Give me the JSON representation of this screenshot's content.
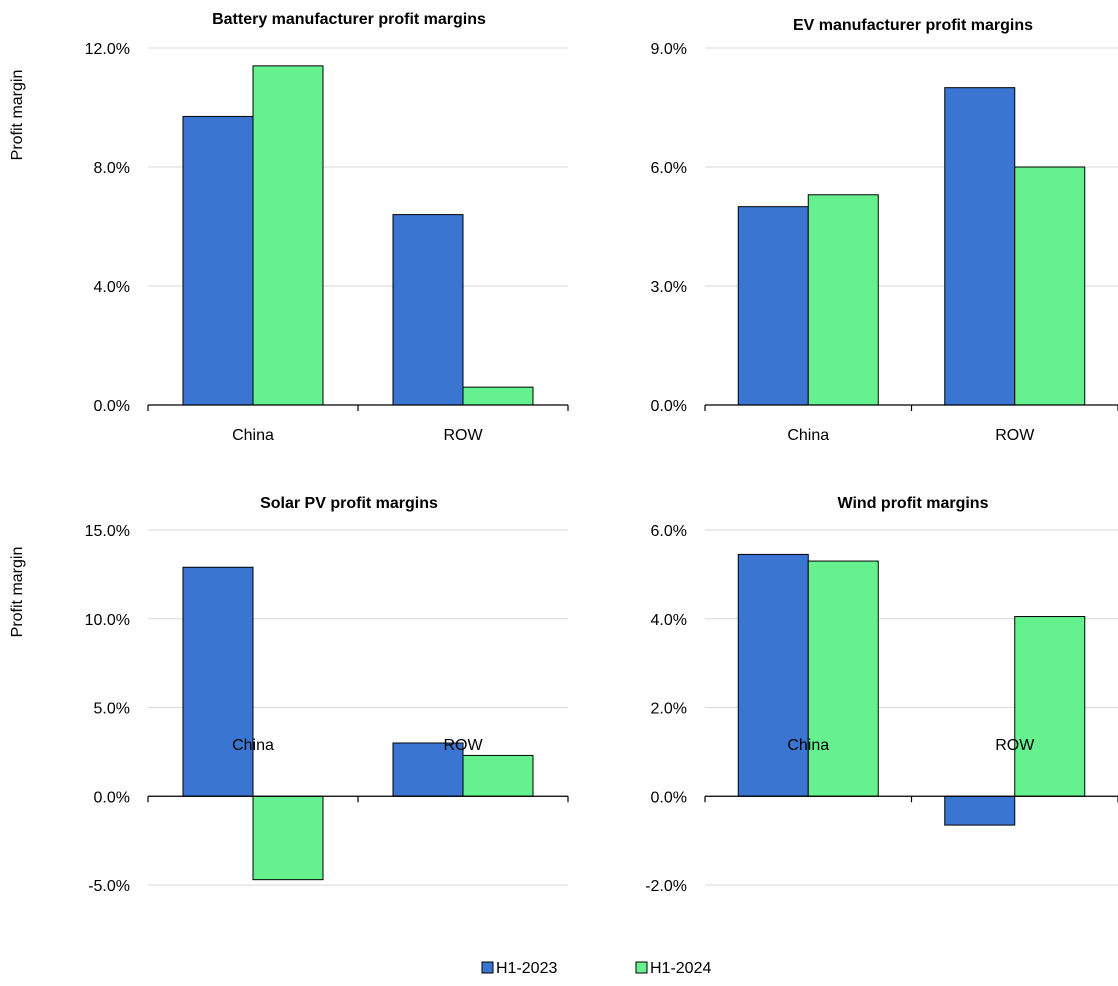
{
  "colors": {
    "H1-2023": "#3a76d1",
    "H1-2024": "#65f28e",
    "grid": "#d9d9d9",
    "axis": "#000000"
  },
  "legend": {
    "placement": "bottom",
    "items": [
      {
        "label": "H1-2023",
        "color": "#3a76d1"
      },
      {
        "label": "H1-2024",
        "color": "#65f28e"
      }
    ]
  },
  "chart_data": [
    {
      "type": "bar",
      "title": "Battery manufacturer profit margins",
      "ylabel": "Profit margin",
      "categories": [
        "China",
        "ROW"
      ],
      "series": [
        {
          "name": "H1-2023",
          "values": [
            9.7,
            6.4
          ]
        },
        {
          "name": "H1-2024",
          "values": [
            11.4,
            0.6
          ]
        }
      ],
      "ylim": [
        0,
        12
      ],
      "yticks": [
        0,
        4,
        8,
        12
      ],
      "ytick_labels": [
        "0.0%",
        "4.0%",
        "8.0%",
        "12.0%"
      ],
      "grid": true
    },
    {
      "type": "bar",
      "title": "EV manufacturer profit margins",
      "ylabel": "",
      "categories": [
        "China",
        "ROW"
      ],
      "series": [
        {
          "name": "H1-2023",
          "values": [
            5.0,
            8.0
          ]
        },
        {
          "name": "H1-2024",
          "values": [
            5.3,
            6.0
          ]
        }
      ],
      "ylim": [
        0,
        9
      ],
      "yticks": [
        0,
        3,
        6,
        9
      ],
      "ytick_labels": [
        "0.0%",
        "3.0%",
        "6.0%",
        "9.0%"
      ],
      "grid": true
    },
    {
      "type": "bar",
      "title": "Solar PV profit margins",
      "ylabel": "Profit margin",
      "categories": [
        "China",
        "ROW"
      ],
      "series": [
        {
          "name": "H1-2023",
          "values": [
            12.9,
            3.0
          ]
        },
        {
          "name": "H1-2024",
          "values": [
            -4.7,
            2.3
          ]
        }
      ],
      "ylim": [
        -5,
        15
      ],
      "yticks": [
        -5,
        0,
        5,
        10,
        15
      ],
      "ytick_labels": [
        "-5.0%",
        "0.0%",
        "5.0%",
        "10.0%",
        "15.0%"
      ],
      "grid": true
    },
    {
      "type": "bar",
      "title": "Wind profit margins",
      "ylabel": "",
      "categories": [
        "China",
        "ROW"
      ],
      "series": [
        {
          "name": "H1-2023",
          "values": [
            5.45,
            -0.65
          ]
        },
        {
          "name": "H1-2024",
          "values": [
            5.3,
            4.05
          ]
        }
      ],
      "ylim": [
        -2,
        6
      ],
      "yticks": [
        -2,
        0,
        2,
        4,
        6
      ],
      "ytick_labels": [
        "-2.0%",
        "0.0%",
        "2.0%",
        "4.0%",
        "6.0%"
      ],
      "grid": true
    }
  ]
}
